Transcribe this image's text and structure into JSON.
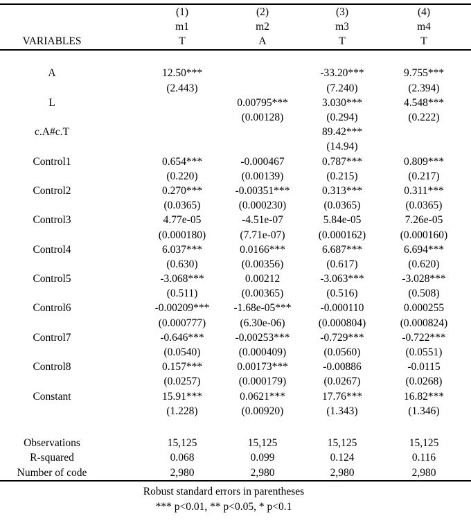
{
  "table": {
    "header": {
      "row_label": "VARIABLES",
      "numbers": [
        "(1)",
        "(2)",
        "(3)",
        "(4)"
      ],
      "models": [
        "m1",
        "m2",
        "m3",
        "m4"
      ],
      "depvars": [
        "T",
        "A",
        "T",
        "T"
      ]
    },
    "rows": [
      {
        "label": "A",
        "coefs": [
          "12.50***",
          "",
          "-33.20***",
          "9.755***"
        ],
        "ses": [
          "(2.443)",
          "",
          "(7.240)",
          "(2.394)"
        ]
      },
      {
        "label": "L",
        "coefs": [
          "",
          "0.00795***",
          "3.030***",
          "4.548***"
        ],
        "ses": [
          "",
          "(0.00128)",
          "(0.294)",
          "(0.222)"
        ]
      },
      {
        "label": "c.A#c.T",
        "coefs": [
          "",
          "",
          "89.42***",
          ""
        ],
        "ses": [
          "",
          "",
          "(14.94)",
          ""
        ]
      },
      {
        "label": "Control1",
        "coefs": [
          "0.654***",
          "-0.000467",
          "0.787***",
          "0.809***"
        ],
        "ses": [
          "(0.220)",
          "(0.00139)",
          "(0.215)",
          "(0.217)"
        ]
      },
      {
        "label": "Control2",
        "coefs": [
          "0.270***",
          "-0.00351***",
          "0.313***",
          "0.311***"
        ],
        "ses": [
          "(0.0365)",
          "(0.000230)",
          "(0.0365)",
          "(0.0365)"
        ]
      },
      {
        "label": "Control3",
        "coefs": [
          "4.77e-05",
          "-4.51e-07",
          "5.84e-05",
          "7.26e-05"
        ],
        "ses": [
          "(0.000180)",
          "(7.71e-07)",
          "(0.000162)",
          "(0.000160)"
        ]
      },
      {
        "label": "Control4",
        "coefs": [
          "6.037***",
          "0.0166***",
          "6.687***",
          "6.694***"
        ],
        "ses": [
          "(0.630)",
          "(0.00356)",
          "(0.617)",
          "(0.620)"
        ]
      },
      {
        "label": "Control5",
        "coefs": [
          "-3.068***",
          "0.00212",
          "-3.063***",
          "-3.028***"
        ],
        "ses": [
          "(0.511)",
          "(0.00365)",
          "(0.516)",
          "(0.508)"
        ]
      },
      {
        "label": "Control6",
        "coefs": [
          "-0.00209***",
          "-1.68e-05***",
          "-0.000110",
          "0.000255"
        ],
        "ses": [
          "(0.000777)",
          "(6.30e-06)",
          "(0.000804)",
          "(0.000824)"
        ]
      },
      {
        "label": "Control7",
        "coefs": [
          "-0.646***",
          "-0.00253***",
          "-0.729***",
          "-0.722***"
        ],
        "ses": [
          "(0.0540)",
          "(0.000409)",
          "(0.0560)",
          "(0.0551)"
        ]
      },
      {
        "label": "Control8",
        "coefs": [
          "0.157***",
          "0.00173***",
          "-0.00886",
          "-0.0115"
        ],
        "ses": [
          "(0.0257)",
          "(0.000179)",
          "(0.0267)",
          "(0.0268)"
        ]
      },
      {
        "label": "Constant",
        "coefs": [
          "15.91***",
          "0.0621***",
          "17.76***",
          "16.82***"
        ],
        "ses": [
          "(1.228)",
          "(0.00920)",
          "(1.343)",
          "(1.346)"
        ]
      }
    ],
    "stats": [
      {
        "label": "Observations",
        "values": [
          "15,125",
          "15,125",
          "15,125",
          "15,125"
        ]
      },
      {
        "label": "R-squared",
        "values": [
          "0.068",
          "0.099",
          "0.124",
          "0.116"
        ]
      },
      {
        "label": "Number of code",
        "values": [
          "2,980",
          "2,980",
          "2,980",
          "2,980"
        ]
      }
    ],
    "notes": [
      "Robust standard errors in parentheses",
      "*** p<0.01, ** p<0.05, * p<0.1"
    ],
    "colors": {
      "text": "#000000",
      "background": "#ffffff",
      "rule": "#000000"
    }
  }
}
